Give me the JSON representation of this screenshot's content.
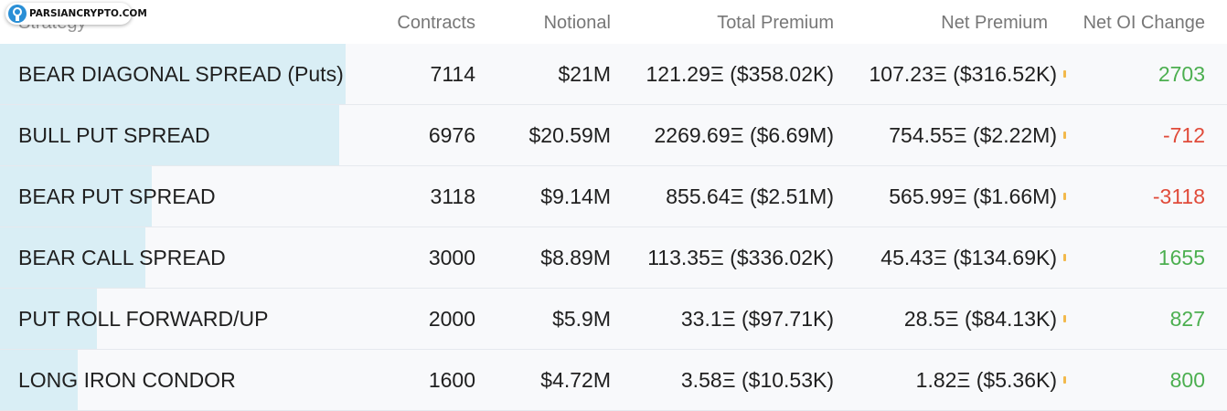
{
  "logo": {
    "text": "PARSIANCRYPTO.COM"
  },
  "header": {
    "strategy": "Strategy",
    "contracts": "Contracts",
    "notional": "Notional",
    "total_premium": "Total Premium",
    "net_premium": "Net Premium",
    "net_oi_change": "Net OI Change"
  },
  "colors": {
    "bar": "#d9eef5",
    "positive": "#4caf50",
    "negative": "#e04b3a"
  },
  "rows": [
    {
      "strategy": "BEAR DIAGONAL SPREAD (Puts)",
      "contracts": "7114",
      "contracts_value": 7114,
      "notional": "$21M",
      "total_premium": "121.29Ξ ($358.02K)",
      "net_premium": "107.23Ξ ($316.52K)",
      "net_oi_change": "2703",
      "oi_sign": "positive"
    },
    {
      "strategy": "BULL PUT SPREAD",
      "contracts": "6976",
      "contracts_value": 6976,
      "notional": "$20.59M",
      "total_premium": "2269.69Ξ ($6.69M)",
      "net_premium": "754.55Ξ ($2.22M)",
      "net_oi_change": "-712",
      "oi_sign": "negative"
    },
    {
      "strategy": "BEAR PUT SPREAD",
      "contracts": "3118",
      "contracts_value": 3118,
      "notional": "$9.14M",
      "total_premium": "855.64Ξ ($2.51M)",
      "net_premium": "565.99Ξ ($1.66M)",
      "net_oi_change": "-3118",
      "oi_sign": "negative"
    },
    {
      "strategy": "BEAR CALL SPREAD",
      "contracts": "3000",
      "contracts_value": 3000,
      "notional": "$8.89M",
      "total_premium": "113.35Ξ ($336.02K)",
      "net_premium": "45.43Ξ ($134.69K)",
      "net_oi_change": "1655",
      "oi_sign": "positive"
    },
    {
      "strategy": "PUT ROLL FORWARD/UP",
      "contracts": "2000",
      "contracts_value": 2000,
      "notional": "$5.9M",
      "total_premium": "33.1Ξ ($97.71K)",
      "net_premium": "28.5Ξ ($84.13K)",
      "net_oi_change": "827",
      "oi_sign": "positive"
    },
    {
      "strategy": "LONG IRON CONDOR",
      "contracts": "1600",
      "contracts_value": 1600,
      "notional": "$4.72M",
      "total_premium": "3.58Ξ ($10.53K)",
      "net_premium": "1.82Ξ ($5.36K)",
      "net_oi_change": "800",
      "oi_sign": "positive"
    }
  ]
}
